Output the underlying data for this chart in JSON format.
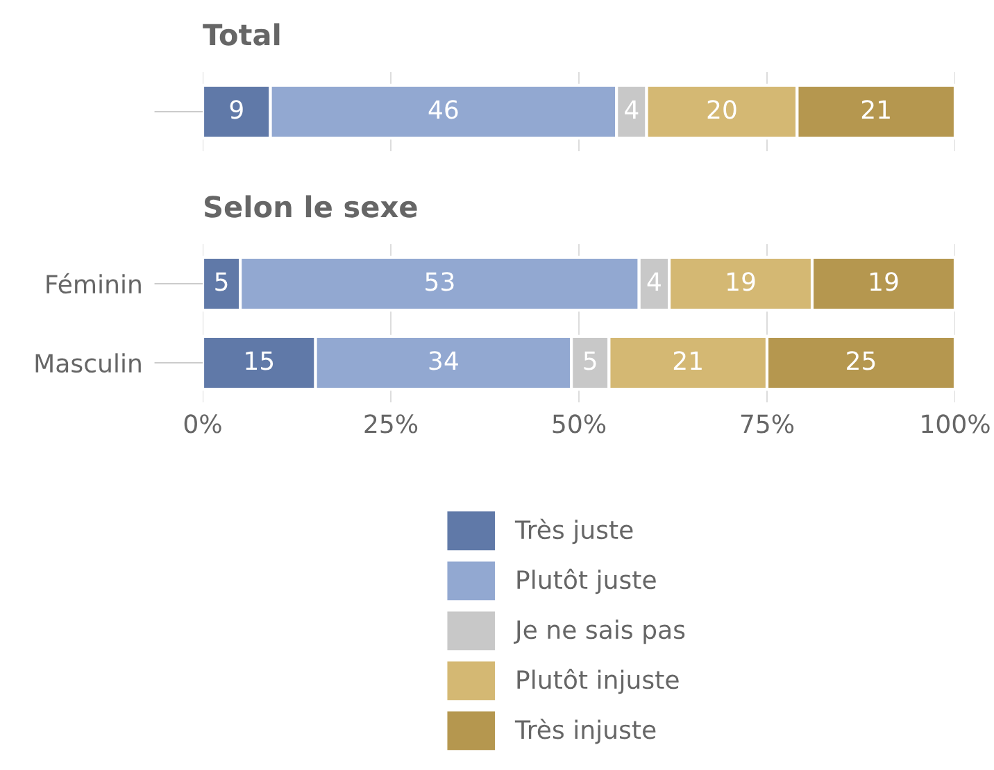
{
  "chart_data": [
    {
      "type": "bar",
      "title": "Total",
      "orientation": "horizontal",
      "stacked": true,
      "categories": [
        null
      ],
      "series": [
        {
          "color": "#6079a8",
          "values": [
            9
          ]
        },
        {
          "color": "#92a8d1",
          "values": [
            46
          ]
        },
        {
          "color": "#c8c8c8",
          "values": [
            4
          ]
        },
        {
          "color": "#d4b873",
          "values": [
            20
          ]
        },
        {
          "color": "#b5974f",
          "values": [
            21
          ]
        }
      ],
      "xlim": [
        0,
        100
      ],
      "xticks": [
        {
          "value": 0,
          "label": null
        },
        {
          "value": 25,
          "label": null
        },
        {
          "value": 50,
          "label": null
        },
        {
          "value": 75,
          "label": null
        },
        {
          "value": 100,
          "label": null
        }
      ],
      "grid": "x",
      "data_labels": true,
      "legend": false
    },
    {
      "type": "bar",
      "title": "Selon le sexe",
      "orientation": "horizontal",
      "stacked": true,
      "categories": [
        "Féminin",
        "Masculin"
      ],
      "series": [
        {
          "name": "Très juste",
          "color": "#6079a8",
          "values": [
            5,
            15
          ]
        },
        {
          "name": "Plutôt juste",
          "color": "#92a8d1",
          "values": [
            53,
            34
          ]
        },
        {
          "name": "Je ne sais pas",
          "color": "#c8c8c8",
          "values": [
            4,
            5
          ]
        },
        {
          "name": "Plutôt injuste",
          "color": "#d4b873",
          "values": [
            19,
            21
          ]
        },
        {
          "name": "Très injuste",
          "color": "#b5974f",
          "values": [
            19,
            25
          ]
        }
      ],
      "xlim": [
        0,
        100
      ],
      "xticks": [
        {
          "value": 0,
          "label": "0%"
        },
        {
          "value": 25,
          "label": "25%"
        },
        {
          "value": 50,
          "label": "50%"
        },
        {
          "value": 75,
          "label": "75%"
        },
        {
          "value": 100,
          "label": "100%"
        }
      ],
      "grid": "x",
      "data_labels": true,
      "legend": "bottom"
    }
  ]
}
